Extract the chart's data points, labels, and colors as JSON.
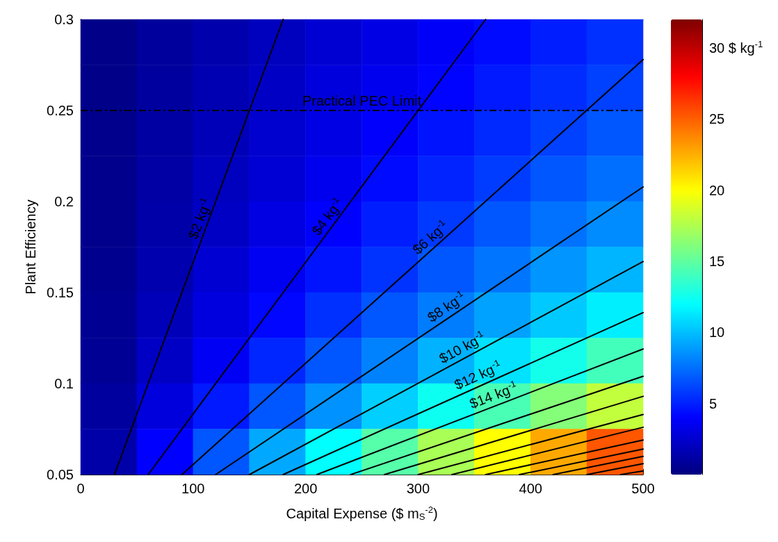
{
  "chart_data": {
    "type": "heatmap",
    "xlabel": "Capital Expense ($ m$_{S}$$^{-2}$)",
    "ylabel": "Plant Efficiency",
    "xlim": [
      0,
      500
    ],
    "xticks": [
      0,
      100,
      200,
      300,
      400,
      500
    ],
    "ylim": [
      0.05,
      0.3
    ],
    "yticks": [
      0.05,
      0.1,
      0.15,
      0.2,
      0.25,
      0.3
    ],
    "grid": false,
    "legend": false,
    "marker": "none",
    "line_style": "solid",
    "clim": [
      0,
      32
    ],
    "cticks": [
      5,
      10,
      15,
      20,
      25,
      {
        "value": 30,
        "label": "30 $ kg$^{-1}$"
      }
    ],
    "cells": [
      [
        0.3,
        0.9,
        1.4,
        2.0,
        2.6,
        3.2,
        3.8,
        4.3,
        4.9,
        5.5
      ],
      [
        0.3,
        1.0,
        1.6,
        2.2,
        2.9,
        3.5,
        4.1,
        4.8,
        5.4,
        6.0
      ],
      [
        0.4,
        1.1,
        1.8,
        2.5,
        3.2,
        3.9,
        4.6,
        5.3,
        6.0,
        6.7
      ],
      [
        0.4,
        1.2,
        2.0,
        2.7,
        3.5,
        4.3,
        5.1,
        5.9,
        6.7,
        7.5
      ],
      [
        0.4,
        1.3,
        2.2,
        3.1,
        4.0,
        4.9,
        5.8,
        6.7,
        7.6,
        8.4
      ],
      [
        0.5,
        1.5,
        2.6,
        3.6,
        4.6,
        5.6,
        6.7,
        7.7,
        8.7,
        9.7
      ],
      [
        0.6,
        1.8,
        3.0,
        4.2,
        5.5,
        6.7,
        7.9,
        9.1,
        10.3,
        11.5
      ],
      [
        0.7,
        2.2,
        3.7,
        5.2,
        6.7,
        8.1,
        9.6,
        11.1,
        12.6,
        14.1
      ],
      [
        1.0,
        2.9,
        4.8,
        6.7,
        8.6,
        10.5,
        12.4,
        14.3,
        16.2,
        18.1
      ],
      [
        1.3,
        4.0,
        6.7,
        9.3,
        12.0,
        14.7,
        17.3,
        20.0,
        22.7,
        25.3
      ]
    ],
    "series": [
      {
        "type": "line",
        "name": "$2 kg$^{-1}$",
        "color": "#000000",
        "x": [
          30,
          180
        ],
        "values": [
          0.05,
          0.3
        ]
      },
      {
        "type": "line",
        "name": "$4 kg$^{-1}$",
        "color": "#000000",
        "x": [
          60,
          360
        ],
        "values": [
          0.05,
          0.3
        ]
      },
      {
        "type": "line",
        "name": "$6 kg$^{-1}$",
        "color": "#000000",
        "x": [
          90,
          500
        ],
        "values": [
          0.05,
          0.278
        ]
      },
      {
        "type": "line",
        "name": "$8 kg$^{-1}$",
        "color": "#000000",
        "x": [
          120,
          500
        ],
        "values": [
          0.05,
          0.208
        ]
      },
      {
        "type": "line",
        "name": "$10 kg$^{-1}$",
        "color": "#000000",
        "x": [
          150,
          500
        ],
        "values": [
          0.05,
          0.167
        ]
      },
      {
        "type": "line",
        "name": "$12 kg$^{-1}$",
        "color": "#000000",
        "x": [
          180,
          500
        ],
        "values": [
          0.05,
          0.139
        ]
      },
      {
        "type": "line",
        "name": "$14 kg$^{-1}$",
        "color": "#000000",
        "x": [
          210,
          500
        ],
        "values": [
          0.05,
          0.119
        ]
      },
      {
        "type": "line",
        "color": "#000000",
        "x": [
          240,
          500
        ],
        "values": [
          0.05,
          0.104
        ]
      },
      {
        "type": "line",
        "color": "#000000",
        "x": [
          270,
          500
        ],
        "values": [
          0.05,
          0.093
        ]
      },
      {
        "type": "line",
        "color": "#000000",
        "x": [
          300,
          500
        ],
        "values": [
          0.05,
          0.083
        ]
      },
      {
        "type": "line",
        "color": "#000000",
        "x": [
          330,
          500
        ],
        "values": [
          0.05,
          0.076
        ]
      },
      {
        "type": "line",
        "color": "#000000",
        "x": [
          360,
          500
        ],
        "values": [
          0.05,
          0.069
        ]
      },
      {
        "type": "line",
        "color": "#000000",
        "x": [
          390,
          500
        ],
        "values": [
          0.05,
          0.064
        ]
      },
      {
        "type": "line",
        "color": "#000000",
        "x": [
          420,
          500
        ],
        "values": [
          0.05,
          0.06
        ]
      },
      {
        "type": "line",
        "color": "#000000",
        "x": [
          450,
          500
        ],
        "values": [
          0.05,
          0.056
        ]
      },
      {
        "type": "line",
        "color": "#000000",
        "x": [
          480,
          500
        ],
        "values": [
          0.05,
          0.052
        ]
      }
    ],
    "ref_lines": [
      {
        "axis": "y",
        "value": 0.25,
        "label": "Practical PEC Limit",
        "color": "#000000",
        "line_style": "dashed"
      }
    ]
  }
}
